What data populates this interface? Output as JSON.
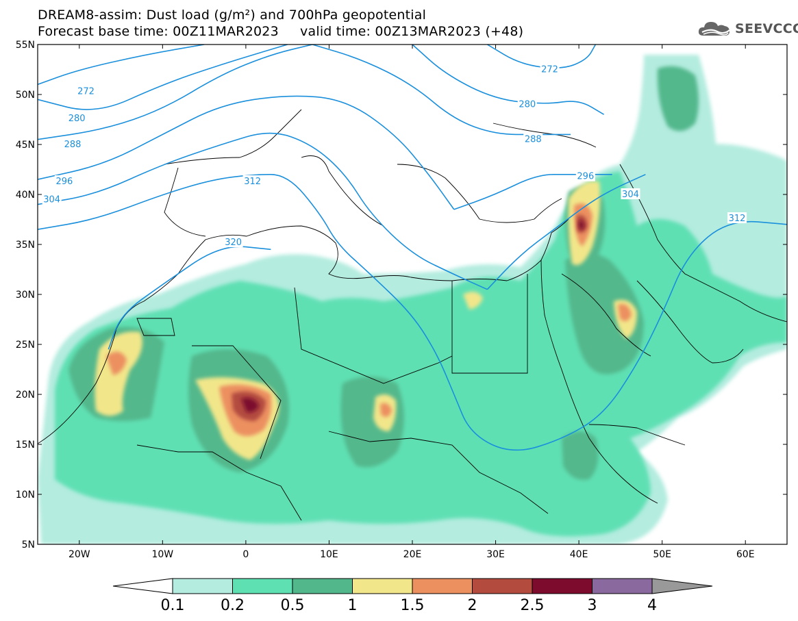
{
  "title_line1": "DREAM8-assim: Dust load (g/m²) and 700hPa geopotential",
  "title_line2": "Forecast base time: 00Z11MAR2023     valid time: 00Z13MAR2023 (+48)",
  "logo": {
    "text": "SEEVCCC",
    "icon": "cloud-icon"
  },
  "map": {
    "lon_range": [
      -25,
      65
    ],
    "lat_range": [
      5,
      55
    ],
    "lon_ticks": [
      {
        "value": -20,
        "label": "20W"
      },
      {
        "value": -10,
        "label": "10W"
      },
      {
        "value": 0,
        "label": "0"
      },
      {
        "value": 10,
        "label": "10E"
      },
      {
        "value": 20,
        "label": "20E"
      },
      {
        "value": 30,
        "label": "30E"
      },
      {
        "value": 40,
        "label": "40E"
      },
      {
        "value": 50,
        "label": "50E"
      },
      {
        "value": 60,
        "label": "60E"
      }
    ],
    "lat_ticks": [
      {
        "value": 55,
        "label": "55N"
      },
      {
        "value": 50,
        "label": "50N"
      },
      {
        "value": 45,
        "label": "45N"
      },
      {
        "value": 40,
        "label": "40N"
      },
      {
        "value": 35,
        "label": "35N"
      },
      {
        "value": 30,
        "label": "30N"
      },
      {
        "value": 25,
        "label": "25N"
      },
      {
        "value": 20,
        "label": "20N"
      },
      {
        "value": 15,
        "label": "15N"
      },
      {
        "value": 10,
        "label": "10N"
      },
      {
        "value": 5,
        "label": "5N"
      }
    ],
    "contour_color": "#1a8fdc",
    "geopotential_contours": [
      {
        "label": "272",
        "points": [
          [
            -25,
            51
          ],
          [
            -20,
            52.5
          ],
          [
            -12,
            54
          ],
          [
            -5,
            55
          ]
        ],
        "label_at": [
          -19.2,
          50.3
        ]
      },
      {
        "label": "272",
        "points": [
          [
            29,
            55
          ],
          [
            33,
            53
          ],
          [
            38,
            52.5
          ],
          [
            41,
            53.5
          ],
          [
            42,
            55
          ]
        ],
        "label_at": [
          36.5,
          52.5
        ]
      },
      {
        "label": "280",
        "points": [
          [
            -25,
            49.5
          ],
          [
            -18,
            48
          ],
          [
            -10,
            51
          ],
          [
            -3,
            53
          ],
          [
            5,
            55
          ]
        ],
        "label_at": [
          -20.3,
          47.6
        ]
      },
      {
        "label": "280",
        "points": [
          [
            20,
            55
          ],
          [
            24,
            52
          ],
          [
            30,
            49.5
          ],
          [
            36,
            49
          ],
          [
            40,
            49.5
          ],
          [
            43,
            48
          ]
        ],
        "label_at": [
          33.8,
          49
        ]
      },
      {
        "label": "288",
        "points": [
          [
            -25,
            45.5
          ],
          [
            -17,
            46.5
          ],
          [
            -10,
            48.5
          ],
          [
            -3,
            52
          ],
          [
            3,
            54
          ],
          [
            8,
            55
          ]
        ],
        "label_at": [
          -20.8,
          45
        ]
      },
      {
        "label": "288",
        "points": [
          [
            8,
            55
          ],
          [
            14,
            53.5
          ],
          [
            20,
            51
          ],
          [
            25,
            47.5
          ],
          [
            30,
            46
          ],
          [
            35,
            46
          ],
          [
            39,
            46
          ]
        ],
        "label_at": [
          34.5,
          45.5
        ]
      },
      {
        "label": "296",
        "points": [
          [
            -25,
            41.5
          ],
          [
            -17,
            43
          ],
          [
            -10,
            46
          ],
          [
            -3,
            49
          ],
          [
            5,
            50
          ],
          [
            12,
            49.5
          ],
          [
            18,
            46
          ],
          [
            22,
            42
          ],
          [
            25,
            38.5
          ]
        ],
        "label_at": [
          -21.8,
          41.3
        ]
      },
      {
        "label": "296",
        "points": [
          [
            25,
            38.5
          ],
          [
            30,
            40
          ],
          [
            35,
            42
          ],
          [
            39,
            42
          ],
          [
            44,
            42
          ]
        ],
        "label_at": [
          40.8,
          41.8
        ]
      },
      {
        "label": "304",
        "points": [
          [
            -25,
            39
          ],
          [
            -18,
            40
          ],
          [
            -10,
            43
          ],
          [
            -3,
            45
          ],
          [
            3,
            46.5
          ],
          [
            8,
            45
          ],
          [
            12,
            42
          ],
          [
            15,
            38
          ],
          [
            20,
            34
          ],
          [
            25,
            32
          ],
          [
            29,
            30.5
          ]
        ],
        "label_at": [
          -23.3,
          39.5
        ]
      },
      {
        "label": "304",
        "points": [
          [
            29,
            30.5
          ],
          [
            33,
            34
          ],
          [
            37,
            36.5
          ],
          [
            41,
            39
          ],
          [
            44,
            40.5
          ],
          [
            48,
            42
          ]
        ],
        "label_at": [
          46.2,
          40
        ]
      },
      {
        "label": "312",
        "points": [
          [
            -25,
            36.5
          ],
          [
            -18,
            37.5
          ],
          [
            -10,
            40
          ],
          [
            -4,
            41.5
          ],
          [
            1,
            42
          ],
          [
            5,
            42
          ],
          [
            9,
            38
          ],
          [
            11,
            35
          ],
          [
            15,
            32
          ],
          [
            20,
            28
          ],
          [
            23,
            24
          ],
          [
            25,
            20
          ]
        ],
        "label_at": [
          0.8,
          41.3
        ]
      },
      {
        "label": "312",
        "points": [
          [
            25,
            20
          ],
          [
            27,
            16
          ],
          [
            32,
            14
          ],
          [
            38,
            15.5
          ],
          [
            43,
            18
          ],
          [
            47,
            23
          ],
          [
            50,
            28
          ],
          [
            53,
            34
          ],
          [
            58,
            37.5
          ],
          [
            65,
            37
          ]
        ],
        "label_at": [
          59,
          37.6
        ]
      },
      {
        "label": "320",
        "points": [
          [
            -16.5,
            24.5
          ],
          [
            -15,
            28
          ],
          [
            -10,
            31
          ],
          [
            -3,
            35
          ],
          [
            3,
            34.5
          ]
        ],
        "label_at": [
          -1.5,
          35.2
        ]
      }
    ],
    "dust_categories": [
      {
        "label": "0.1",
        "color": "#b4ecdf"
      },
      {
        "label": "0.2",
        "color": "#5fe0b3"
      },
      {
        "label": "0.5",
        "color": "#52b88c"
      },
      {
        "label": "1",
        "color": "#f2e68a"
      },
      {
        "label": "1.5",
        "color": "#ec9060"
      },
      {
        "label": "2",
        "color": "#b34b3f"
      },
      {
        "label": "2.5",
        "color": "#7d0b2e"
      },
      {
        "label": "3",
        "color": "#8a6a9e"
      },
      {
        "label": "4",
        "color": "#999999"
      }
    ]
  },
  "colorbar": {
    "ticks": [
      "0.1",
      "0.2",
      "0.5",
      "1",
      "1.5",
      "2",
      "2.5",
      "3",
      "4"
    ],
    "under_color": "#ffffff",
    "over_color": "#999999"
  }
}
